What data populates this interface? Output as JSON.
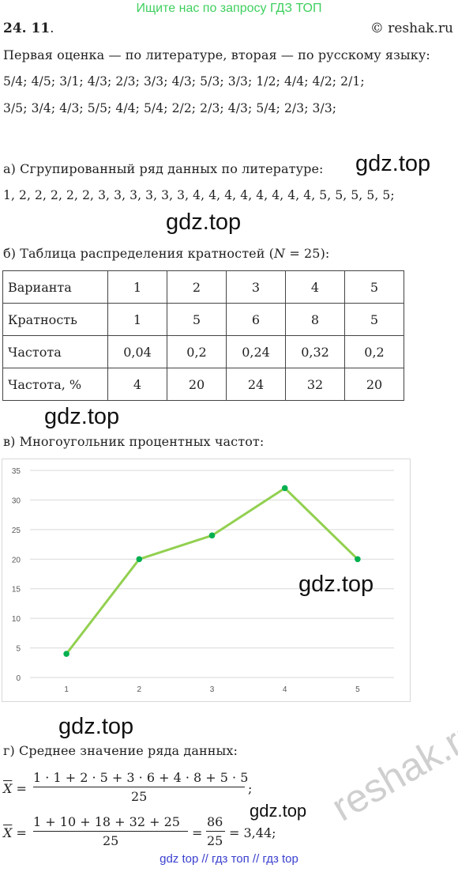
{
  "header": {
    "search_hint": "Ищите нас по запросу ГДЗ ТОП"
  },
  "problem": {
    "number": "24. 11",
    "number_suffix": ".",
    "site": "© reshak.ru"
  },
  "intro": {
    "line1": "Первая оценка — по литературе, вторая — по русскому языку:",
    "line2": "5/4;  4/5;  3/1;  4/3;  2/3;  3/3;  4/3;  5/3;  3/3;  1/2;  4/4;  4/2;  2/1;",
    "line3": "3/5;  3/4;  4/3;  5/5;  4/4;  5/4;  2/2;  2/3;  4/3;  5/4;  2/3;  3/3;"
  },
  "part_a": {
    "label": "а) Сгрупированный ряд данных по литературе:",
    "series": "1, 2, 2, 2, 2, 2, 3, 3, 3, 3, 3, 3, 4, 4, 4, 4, 4, 4, 4, 4, 5, 5, 5, 5, 5;"
  },
  "part_b": {
    "label": "б) Таблица распределения кратностей (",
    "n_symbol": "N",
    "n_rest": " = 25):",
    "rows": [
      {
        "header": "Варианта",
        "values": [
          "1",
          "2",
          "3",
          "4",
          "5"
        ]
      },
      {
        "header": "Кратность",
        "values": [
          "1",
          "5",
          "6",
          "8",
          "5"
        ]
      },
      {
        "header": "Частота",
        "values": [
          "0,04",
          "0,2",
          "0,24",
          "0,32",
          "0,2"
        ]
      },
      {
        "header": "Частота, %",
        "values": [
          "4",
          "20",
          "24",
          "32",
          "20"
        ]
      }
    ]
  },
  "part_v": {
    "label": "в) Многоугольник процентных частот:"
  },
  "chart_data": {
    "type": "line",
    "x": [
      1,
      2,
      3,
      4,
      5
    ],
    "y": [
      4,
      20,
      24,
      32,
      20
    ],
    "xlim": [
      0.5,
      5.5
    ],
    "ylim": [
      0,
      35
    ],
    "yticks": [
      0,
      5,
      10,
      15,
      20,
      25,
      30,
      35
    ],
    "xticks": [
      1,
      2,
      3,
      4,
      5
    ],
    "grid": "horizontal",
    "line_color": "#92d050",
    "marker_color": "#00b050",
    "grid_color": "#d9d9d9",
    "title": "",
    "xlabel": "",
    "ylabel": ""
  },
  "part_g": {
    "label": "г) Среднее значение ряда данных:",
    "xbar": "X",
    "f1_num": "1 · 1 + 2 · 5 + 3 · 6 + 4 · 8 + 5 · 5",
    "f1_den": "25",
    "f1_tail": ";",
    "f2_num": "1 + 10 + 18 + 32 + 25",
    "f2_den": "25",
    "f2_mid": "=",
    "f2_num2": "86",
    "f2_den2": "25",
    "f2_result": "= 3,44;",
    "eq": "="
  },
  "watermarks": {
    "text": "gdz.top",
    "ghost": "reshak.ru"
  },
  "footer": {
    "links": "gdz top  //  гдз топ  //  гдз top"
  },
  "colors": {
    "header_green": "#3fcf5f",
    "footer_blue": "#3a3fcf"
  }
}
